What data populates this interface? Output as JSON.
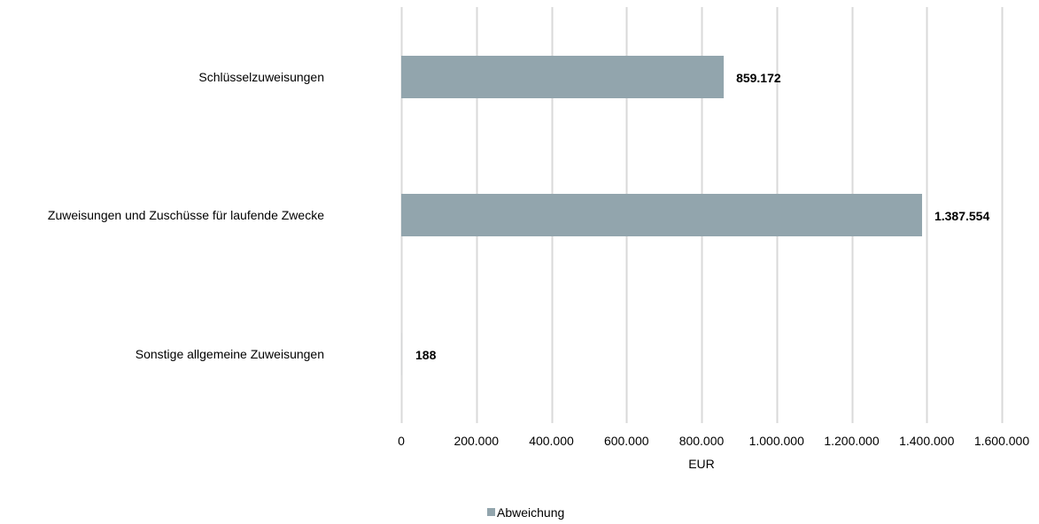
{
  "chart_data": {
    "type": "bar",
    "orientation": "horizontal",
    "categories": [
      "Schlüsselzuweisungen",
      "Zuweisungen und Zuschüsse für laufende Zwecke",
      "Sonstige allgemeine Zuweisungen"
    ],
    "series": [
      {
        "name": "Abweichung",
        "values": [
          859172,
          1387554,
          188
        ],
        "data_labels": [
          "859.172",
          "1.387.554",
          "188"
        ],
        "color": "#92a5ad"
      }
    ],
    "xlabel": "EUR",
    "xlim": [
      0,
      1600000
    ],
    "x_ticks": [
      0,
      200000,
      400000,
      600000,
      800000,
      1000000,
      1200000,
      1400000,
      1600000
    ],
    "x_tick_labels": [
      "0",
      "200.000",
      "400.000",
      "600.000",
      "800.000",
      "1.000.000",
      "1.200.000",
      "1.400.000",
      "1.600.000"
    ],
    "grid": true,
    "grid_color": "#d9d9d9",
    "legend": {
      "position": "bottom",
      "entries": [
        "Abweichung"
      ]
    }
  }
}
